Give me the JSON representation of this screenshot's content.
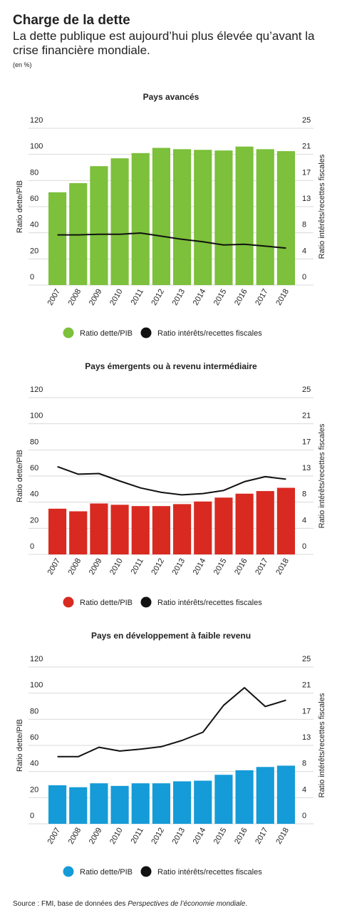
{
  "header": {
    "title": "Charge de la dette",
    "subtitle": "La dette publique est aujourd’hui plus élevée qu’avant la crise financière mondiale.",
    "unit": "(en %)"
  },
  "legend": {
    "bar_label": "Ratio dette/PIB",
    "line_label": "Ratio intérêts/recettes fiscales"
  },
  "source": {
    "prefix": "Source : FMI, base de données des ",
    "italic": "Perspectives de l’économie mondiale",
    "suffix": "."
  },
  "colors": {
    "avances": "#7cc03b",
    "emergents": "#d82a21",
    "faible": "#159bd8",
    "line": "#111111",
    "grid": "#d9d9d9"
  },
  "chart_data": [
    {
      "type": "bar+line",
      "title": "Pays avancés",
      "categories": [
        "2007",
        "2008",
        "2009",
        "2010",
        "2011",
        "2012",
        "2013",
        "2014",
        "2015",
        "2016",
        "2017",
        "2018"
      ],
      "ylabel": "Ratio dette/PIB",
      "y2label": "Ratio intérêts/recettes fiscales",
      "ylim": [
        0,
        120
      ],
      "y2lim": [
        0,
        25
      ],
      "yticks": [
        0,
        20,
        40,
        60,
        80,
        100,
        120
      ],
      "y2ticks": [
        0,
        4,
        8,
        13,
        17,
        21,
        25
      ],
      "grid": true,
      "legend": "bottom",
      "series": [
        {
          "name": "Ratio dette/PIB",
          "kind": "bar",
          "values": [
            71,
            78,
            91,
            97,
            101,
            105,
            104,
            103.5,
            103,
            106,
            104,
            102.5
          ]
        },
        {
          "name": "Ratio intérêts/recettes fiscales",
          "kind": "line",
          "values": [
            8.0,
            8.0,
            8.1,
            8.1,
            8.3,
            7.8,
            7.3,
            6.9,
            6.4,
            6.5,
            6.2,
            5.9
          ]
        }
      ]
    },
    {
      "type": "bar+line",
      "title": "Pays émergents ou à revenu intermédiaire",
      "categories": [
        "2007",
        "2008",
        "2009",
        "2010",
        "2011",
        "2012",
        "2013",
        "2014",
        "2015",
        "2016",
        "2017",
        "2018"
      ],
      "ylabel": "Ratio dette/PIB",
      "y2label": "Ratio intérêts/recettes fiscales",
      "ylim": [
        0,
        120
      ],
      "y2lim": [
        0,
        25
      ],
      "yticks": [
        0,
        20,
        40,
        60,
        80,
        100,
        120
      ],
      "y2ticks": [
        0,
        4,
        8,
        13,
        17,
        21,
        25
      ],
      "grid": true,
      "legend": "bottom",
      "series": [
        {
          "name": "Ratio dette/PIB",
          "kind": "bar",
          "values": [
            35,
            33,
            39,
            38,
            37,
            37,
            38.5,
            40.5,
            43.5,
            46.5,
            48.5,
            51
          ]
        },
        {
          "name": "Ratio intérêts/recettes fiscales",
          "kind": "line",
          "values": [
            14.0,
            12.8,
            12.9,
            11.7,
            10.6,
            9.9,
            9.5,
            9.7,
            10.2,
            11.6,
            12.4,
            12.0
          ]
        }
      ]
    },
    {
      "type": "bar+line",
      "title": "Pays en développement à faible revenu",
      "categories": [
        "2007",
        "2008",
        "2009",
        "2010",
        "2011",
        "2012",
        "2013",
        "2014",
        "2015",
        "2016",
        "2017",
        "2018"
      ],
      "ylabel": "Ratio dette/PIB",
      "y2label": "Ratio intérêts/recettes fiscales",
      "ylim": [
        0,
        120
      ],
      "y2lim": [
        0,
        25
      ],
      "yticks": [
        0,
        20,
        40,
        60,
        80,
        100,
        120
      ],
      "y2ticks": [
        0,
        4,
        8,
        13,
        17,
        21,
        25
      ],
      "grid": true,
      "legend": "bottom",
      "series": [
        {
          "name": "Ratio dette/PIB",
          "kind": "bar",
          "values": [
            29.5,
            28,
            31,
            29,
            31,
            31,
            32.5,
            33,
            37.5,
            41,
            43.5,
            44.5
          ]
        },
        {
          "name": "Ratio intérêts/recettes fiscales",
          "kind": "line",
          "values": [
            10.7,
            10.7,
            12.2,
            11.6,
            11.9,
            12.3,
            13.3,
            14.6,
            18.9,
            21.7,
            18.7,
            19.7
          ]
        }
      ]
    }
  ]
}
